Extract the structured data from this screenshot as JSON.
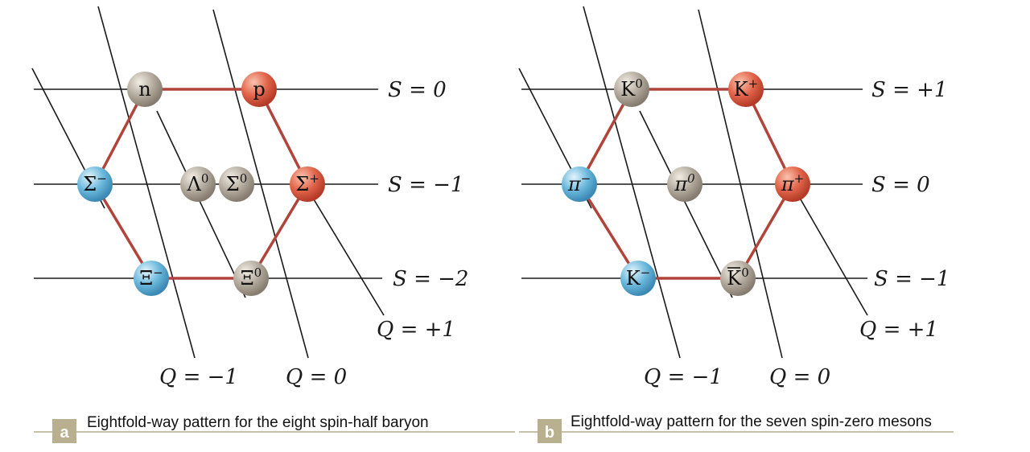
{
  "panels": [
    {
      "id": "a",
      "badge": "a",
      "caption": "Eightfold-way pattern for the eight spin-half baryon",
      "strangeness_labels": [
        "S = 0",
        "S = −1",
        "S = −2"
      ],
      "charge_labels": [
        "Q = −1",
        "Q = 0",
        "Q = +1"
      ],
      "particles": [
        {
          "name": "n",
          "sup": "",
          "color": "neutral"
        },
        {
          "name": "p",
          "sup": "",
          "color": "positive"
        },
        {
          "name": "Σ",
          "sup": "−",
          "color": "negative"
        },
        {
          "name": "Λ",
          "sup": "0",
          "color": "neutral"
        },
        {
          "name": "Σ",
          "sup": "0",
          "color": "neutral"
        },
        {
          "name": "Σ",
          "sup": "+",
          "color": "positive"
        },
        {
          "name": "Ξ",
          "sup": "−",
          "color": "negative"
        },
        {
          "name": "Ξ",
          "sup": "0",
          "color": "neutral"
        }
      ]
    },
    {
      "id": "b",
      "badge": "b",
      "caption": "Eightfold-way pattern for the seven spin-zero mesons",
      "strangeness_labels": [
        "S = +1",
        "S = 0",
        "S = −1"
      ],
      "charge_labels": [
        "Q = −1",
        "Q = 0",
        "Q = +1"
      ],
      "particles": [
        {
          "name": "K",
          "sup": "0",
          "color": "neutral"
        },
        {
          "name": "K",
          "sup": "+",
          "color": "positive"
        },
        {
          "name": "π",
          "sup": "−",
          "color": "negative"
        },
        {
          "name": "π",
          "sup": "0",
          "color": "neutral"
        },
        {
          "name": "π",
          "sup": "+",
          "color": "positive"
        },
        {
          "name": "K",
          "sup": "−",
          "color": "negative"
        },
        {
          "name": "K",
          "sup": "0",
          "color": "neutral",
          "overbar": true
        }
      ]
    }
  ],
  "colors": {
    "neutral": "#b5aca0",
    "positive": "#e2654a",
    "negative": "#6cb9dd",
    "hexagon": "#b0443a",
    "grid": "#1a1a1a",
    "badge": "#b8b08e",
    "rule": "#c5c0a8"
  }
}
